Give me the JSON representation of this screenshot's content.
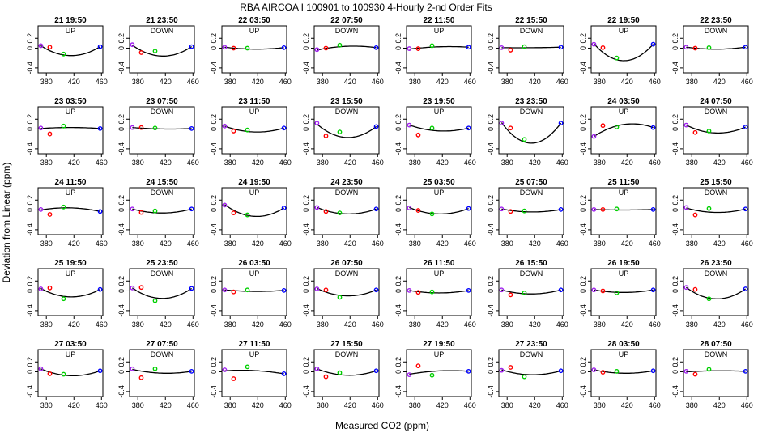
{
  "figure": {
    "title": "RBA   AIRCOA I   100901 to 100930   4-Hourly 2-nd Order Fits",
    "xlabel": "Measured CO2 (ppm)",
    "ylabel": "Deviation from Linear (ppm)"
  },
  "chart_data": {
    "type": "scatter",
    "xlim": [
      368,
      462
    ],
    "ylim": [
      -0.5,
      0.45
    ],
    "x_ticks": [
      380,
      420,
      460
    ],
    "y_ticks": [
      -0.4,
      0,
      0.2
    ],
    "point_x": [
      372,
      385,
      405,
      458
    ],
    "point_colors": [
      "#a020f0",
      "#ff0000",
      "#00d000",
      "#0000ff"
    ],
    "curve_color": "#000000",
    "panels": [
      {
        "time": "21 19:50",
        "dir": "UP",
        "y": [
          0.05,
          0.02,
          -0.12,
          0.03
        ],
        "c": [
          0.05,
          -0.15
        ]
      },
      {
        "time": "21 23:50",
        "dir": "DOWN",
        "y": [
          0.07,
          -0.09,
          -0.06,
          0.03
        ],
        "c": [
          0.06,
          -0.16
        ]
      },
      {
        "time": "22 03:50",
        "dir": "UP",
        "y": [
          0.02,
          0,
          0,
          0.01
        ],
        "c": [
          0.02,
          -0.02
        ]
      },
      {
        "time": "22 07:50",
        "dir": "DOWN",
        "y": [
          -0.03,
          0,
          0.06,
          0.01
        ],
        "c": [
          -0.04,
          0.04
        ]
      },
      {
        "time": "22 11:50",
        "dir": "UP",
        "y": [
          -0.01,
          -0.01,
          0.05,
          0.02
        ],
        "c": [
          -0.02,
          0.03
        ]
      },
      {
        "time": "22 15:50",
        "dir": "DOWN",
        "y": [
          0.01,
          -0.04,
          0.03,
          0.02
        ],
        "c": [
          0.01,
          0.01
        ]
      },
      {
        "time": "22 19:50",
        "dir": "UP",
        "y": [
          0.08,
          0.01,
          -0.2,
          0.08
        ],
        "c": [
          0.09,
          -0.25
        ]
      },
      {
        "time": "22 23:50",
        "dir": "DOWN",
        "y": [
          0.02,
          0,
          0.01,
          0.02
        ],
        "c": [
          0.02,
          -0.02
        ]
      },
      {
        "time": "23 03:50",
        "dir": "UP",
        "y": [
          0.02,
          -0.1,
          0.06,
          0.01
        ],
        "c": [
          0.01,
          0.03
        ]
      },
      {
        "time": "23 07:50",
        "dir": "DOWN",
        "y": [
          0.03,
          0.03,
          0.02,
          0.01
        ],
        "c": [
          0.03,
          0
        ]
      },
      {
        "time": "23 11:50",
        "dir": "UP",
        "y": [
          0.06,
          -0.04,
          -0.02,
          0.02
        ],
        "c": [
          0.06,
          -0.06
        ]
      },
      {
        "time": "23 15:50",
        "dir": "DOWN",
        "y": [
          0.12,
          -0.14,
          -0.06,
          0.05
        ],
        "c": [
          0.1,
          -0.17
        ]
      },
      {
        "time": "23 19:50",
        "dir": "UP",
        "y": [
          0.08,
          -0.12,
          0.02,
          0.02
        ],
        "c": [
          0.08,
          -0.04
        ]
      },
      {
        "time": "23 23:50",
        "dir": "DOWN",
        "y": [
          0.12,
          0.02,
          -0.21,
          0.12
        ],
        "c": [
          0.13,
          -0.28
        ]
      },
      {
        "time": "24 03:50",
        "dir": "UP",
        "y": [
          -0.15,
          0.07,
          0.04,
          0.03
        ],
        "c": [
          -0.15,
          0.1
        ]
      },
      {
        "time": "24 07:50",
        "dir": "DOWN",
        "y": [
          0.08,
          -0.07,
          -0.04,
          0.04
        ],
        "c": [
          0.08,
          -0.08
        ]
      },
      {
        "time": "24 11:50",
        "dir": "UP",
        "y": [
          0.01,
          -0.09,
          0.06,
          -0.03
        ],
        "c": [
          0,
          0.04
        ]
      },
      {
        "time": "24 15:50",
        "dir": "DOWN",
        "y": [
          0.02,
          -0.05,
          -0.02,
          0.02
        ],
        "c": [
          0.02,
          -0.06
        ]
      },
      {
        "time": "24 19:50",
        "dir": "UP",
        "y": [
          0.1,
          -0.06,
          -0.1,
          0.04
        ],
        "c": [
          0.11,
          -0.13
        ]
      },
      {
        "time": "24 23:50",
        "dir": "DOWN",
        "y": [
          0.05,
          -0.03,
          -0.06,
          0.02
        ],
        "c": [
          0.05,
          -0.08
        ]
      },
      {
        "time": "25 03:50",
        "dir": "UP",
        "y": [
          0.04,
          -0.01,
          -0.08,
          0.03
        ],
        "c": [
          0.05,
          -0.08
        ]
      },
      {
        "time": "25 07:50",
        "dir": "DOWN",
        "y": [
          0.02,
          -0.03,
          -0.02,
          0.01
        ],
        "c": [
          0.02,
          -0.04
        ]
      },
      {
        "time": "25 11:50",
        "dir": "UP",
        "y": [
          0.01,
          0.01,
          0.02,
          0.01
        ],
        "c": [
          0.01,
          0
        ]
      },
      {
        "time": "25 15:50",
        "dir": "DOWN",
        "y": [
          0.05,
          -0.1,
          0.03,
          0.02
        ],
        "c": [
          0.04,
          -0.05
        ]
      },
      {
        "time": "25 19:50",
        "dir": "UP",
        "y": [
          0.04,
          0.06,
          -0.16,
          0.03
        ],
        "c": [
          0.05,
          -0.12
        ]
      },
      {
        "time": "25 23:50",
        "dir": "DOWN",
        "y": [
          0.06,
          0.07,
          -0.2,
          0.05
        ],
        "c": [
          0.06,
          -0.15
        ]
      },
      {
        "time": "26 03:50",
        "dir": "UP",
        "y": [
          0.02,
          -0.02,
          0.02,
          0.01
        ],
        "c": [
          0.02,
          -0.01
        ]
      },
      {
        "time": "26 07:50",
        "dir": "DOWN",
        "y": [
          0.04,
          0.02,
          -0.13,
          0.02
        ],
        "c": [
          0.05,
          -0.1
        ]
      },
      {
        "time": "26 11:50",
        "dir": "UP",
        "y": [
          0.01,
          -0.03,
          -0.02,
          0.01
        ],
        "c": [
          0.01,
          -0.04
        ]
      },
      {
        "time": "26 15:50",
        "dir": "DOWN",
        "y": [
          0.02,
          -0.08,
          -0.04,
          0.02
        ],
        "c": [
          0.02,
          -0.06
        ]
      },
      {
        "time": "26 19:50",
        "dir": "UP",
        "y": [
          0.02,
          0,
          -0.04,
          0.02
        ],
        "c": [
          0.02,
          -0.03
        ]
      },
      {
        "time": "26 23:50",
        "dir": "DOWN",
        "y": [
          0.07,
          0.03,
          -0.16,
          0.04
        ],
        "c": [
          0.07,
          -0.16
        ]
      },
      {
        "time": "27 03:50",
        "dir": "UP",
        "y": [
          0.06,
          -0.04,
          -0.05,
          0.02
        ],
        "c": [
          0.06,
          -0.08
        ]
      },
      {
        "time": "27 07:50",
        "dir": "DOWN",
        "y": [
          0.06,
          -0.12,
          0.06,
          0.01
        ],
        "c": [
          0.05,
          -0.03
        ]
      },
      {
        "time": "27 11:50",
        "dir": "UP",
        "y": [
          0.04,
          -0.14,
          0.1,
          -0.04
        ],
        "c": [
          0.02,
          0.02
        ]
      },
      {
        "time": "27 15:50",
        "dir": "DOWN",
        "y": [
          0.06,
          -0.1,
          -0.02,
          0.02
        ],
        "c": [
          0.06,
          -0.07
        ]
      },
      {
        "time": "27 19:50",
        "dir": "UP",
        "y": [
          -0.06,
          0.12,
          -0.07,
          0.01
        ],
        "c": [
          -0.05,
          0.02
        ]
      },
      {
        "time": "27 23:50",
        "dir": "DOWN",
        "y": [
          0.03,
          0.09,
          -0.1,
          0.02
        ],
        "c": [
          0.04,
          -0.06
        ]
      },
      {
        "time": "28 03:50",
        "dir": "UP",
        "y": [
          0.04,
          -0.01,
          0.01,
          0.02
        ],
        "c": [
          0.04,
          -0.03
        ]
      },
      {
        "time": "28 07:50",
        "dir": "DOWN",
        "y": [
          0.01,
          -0.05,
          0.05,
          0.01
        ],
        "c": [
          0,
          0.02
        ]
      }
    ]
  }
}
